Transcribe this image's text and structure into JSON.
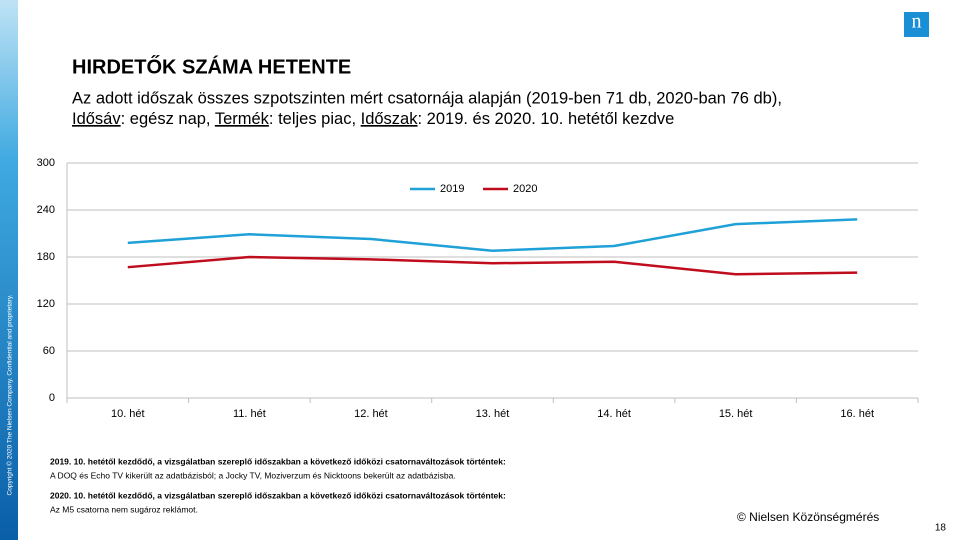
{
  "slide": {
    "logo": "n",
    "copyright": "Copyright © 2020 The Nielsen Company. Confidential and proprietary.",
    "notes": [
      {
        "heading": "2019. 10. hetétől kezdődő, a vizsgálatban szereplő időszakban a következő időközi csatornaváltozások történtek:",
        "text": "A DOQ és Echo TV kikerült az adatbázisból; a Jocky TV, Moziverzum és Nicktoons bekerült az adatbázisba."
      },
      {
        "heading": "2020. 10. hetétől kezdődő, a vizsgálatban szereplő időszakban a következő időközi csatornaváltozások történtek:",
        "text": "Az M5 csatorna nem sugároz reklámot."
      }
    ],
    "source": "© Nielsen Közönségmérés",
    "page_number": "18"
  },
  "chart_data": {
    "type": "line",
    "title": "HIRDETŐK SZÁMA HETENTE",
    "subtitle": "Az adott időszak összes szpotszinten mért csatornája alapján (2019-ben 71 db, 2020-ban 76 db),",
    "subtitle_line2": [
      {
        "text": "Idősáv",
        "underline": true
      },
      {
        "text": ": egész nap, ",
        "underline": false
      },
      {
        "text": "Termék",
        "underline": true
      },
      {
        "text": ": teljes piac, ",
        "underline": false
      },
      {
        "text": "Időszak",
        "underline": true
      },
      {
        "text": ": 2019. és 2020. 10. hetétől kezdve",
        "underline": false
      }
    ],
    "categories": [
      "10. hét",
      "11. hét",
      "12. hét",
      "13. hét",
      "14. hét",
      "15. hét",
      "16. hét"
    ],
    "series": [
      {
        "name": "2019",
        "color": "#1fa1d8",
        "values": [
          198,
          209,
          203,
          188,
          194,
          222,
          228
        ]
      },
      {
        "name": "2020",
        "color": "#c00d1e",
        "values": [
          167,
          180,
          177,
          172,
          174,
          158,
          160
        ]
      }
    ],
    "ylim": [
      0,
      300
    ],
    "yticks": [
      0,
      60,
      120,
      180,
      240,
      300
    ],
    "grid": true,
    "legend": "top"
  }
}
